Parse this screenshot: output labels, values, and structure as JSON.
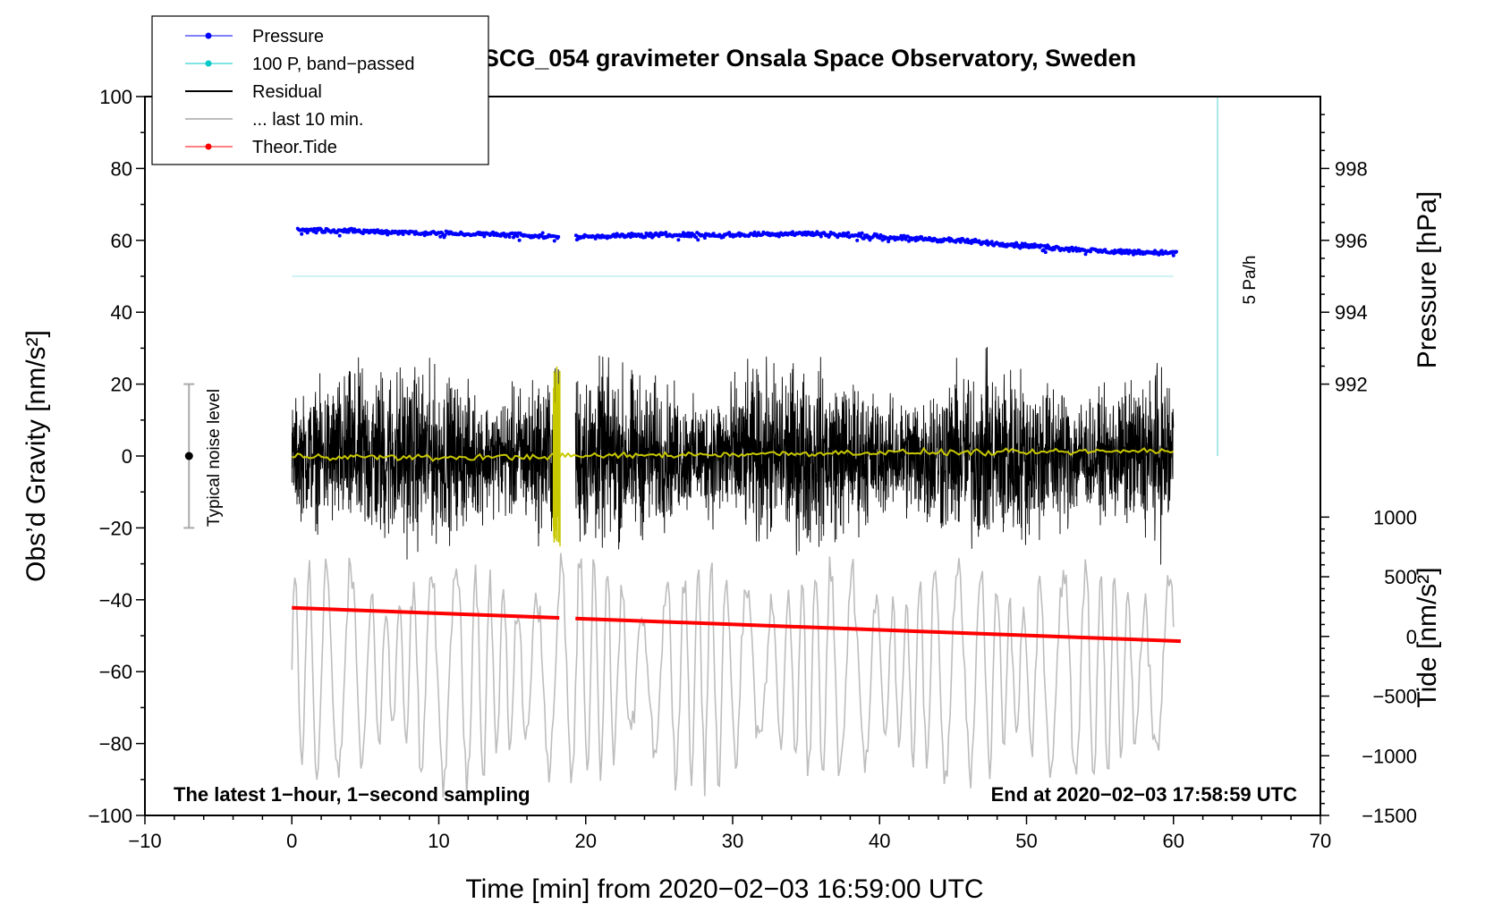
{
  "chart_data": {
    "type": "line",
    "title": "SCG_054 gravimeter Onsala Space Observatory, Sweden",
    "xlabel": "Time [min] from 2020−02−03 16:59:00 UTC",
    "ylabel_left": "Obs’d Gravity [nm/s²]",
    "ylabel_right_top": "Pressure [hPa]",
    "ylabel_right_bottom": "Tide [nm/s²]",
    "xlim": [
      -10,
      70
    ],
    "ylim_left": [
      -100,
      100
    ],
    "xticks": [
      -10,
      0,
      10,
      20,
      30,
      40,
      50,
      60,
      70
    ],
    "yticks_left": [
      -100,
      -80,
      -60,
      -40,
      -20,
      0,
      20,
      40,
      60,
      80,
      100
    ],
    "pressure_axis": {
      "ticks": [
        992,
        994,
        996,
        998
      ],
      "map_gravity": [
        [
          992,
          20
        ],
        [
          998,
          80
        ]
      ]
    },
    "tide_axis": {
      "ticks": [
        -1500,
        -1000,
        -500,
        0,
        500,
        1000
      ],
      "map_gravity": [
        [
          -1500,
          -100
        ],
        [
          1000,
          -17
        ]
      ]
    },
    "annotations": {
      "left_bottom": "The latest 1−hour, 1−second sampling",
      "right_bottom": "End at 2020−02−03 17:58:59 UTC",
      "scale_bar": "5 Pa/h",
      "noise_level": "Typical noise level"
    },
    "legend": [
      {
        "label": "Pressure",
        "color": "#0000ff",
        "marker": "dot"
      },
      {
        "label": "100 P, band−passed",
        "color": "#00c8c8",
        "marker": "dot"
      },
      {
        "label": "Residual",
        "color": "#000000",
        "marker": "none"
      },
      {
        "label": "... last 10 min.",
        "color": "#bdbdbd",
        "marker": "none"
      },
      {
        "label": "Theor.Tide",
        "color": "#ff0000",
        "marker": "dot"
      }
    ],
    "series": {
      "pressure_hPa": {
        "color": "#0000ff",
        "gap_min": [
          18.2,
          19.3
        ],
        "x": [
          0.5,
          5,
          10,
          15,
          18,
          19.5,
          25,
          30,
          35,
          40,
          45,
          50,
          55,
          60
        ],
        "y": [
          996.3,
          996.25,
          996.2,
          996.15,
          996.1,
          996.1,
          996.15,
          996.15,
          996.2,
          996.1,
          996.0,
          995.85,
          995.7,
          995.65
        ]
      },
      "pressure_bandpassed": {
        "color": "#bfeeee",
        "x": [
          0,
          60
        ],
        "y_gravity": [
          50,
          50
        ]
      },
      "residual": {
        "color": "#000000",
        "gap_min": [
          18.2,
          19.3
        ],
        "noise_amplitude_nm_s2": 22
      },
      "residual_smoothed": {
        "color": "#c8c800",
        "x": [
          0,
          10,
          20,
          30,
          40,
          50,
          60
        ],
        "y": [
          0,
          -0.5,
          0,
          0.5,
          1,
          1,
          1.5
        ]
      },
      "last_10_min": {
        "color": "#bdbdbd",
        "x_span": [
          0,
          60
        ],
        "center_gravity": -60,
        "amplitude_gravity": 30
      },
      "theoretical_tide": {
        "color": "#ff0000",
        "x": [
          0,
          60.5
        ],
        "y_tide": [
          240,
          -40
        ]
      },
      "noise_level_bar": {
        "color": "#aaaaaa",
        "x": -7,
        "y_range": [
          -20,
          20
        ],
        "center": 0
      },
      "scale_bar_line": {
        "color": "#8fe0e0",
        "x": 63,
        "y_range": [
          0,
          100
        ]
      }
    }
  }
}
